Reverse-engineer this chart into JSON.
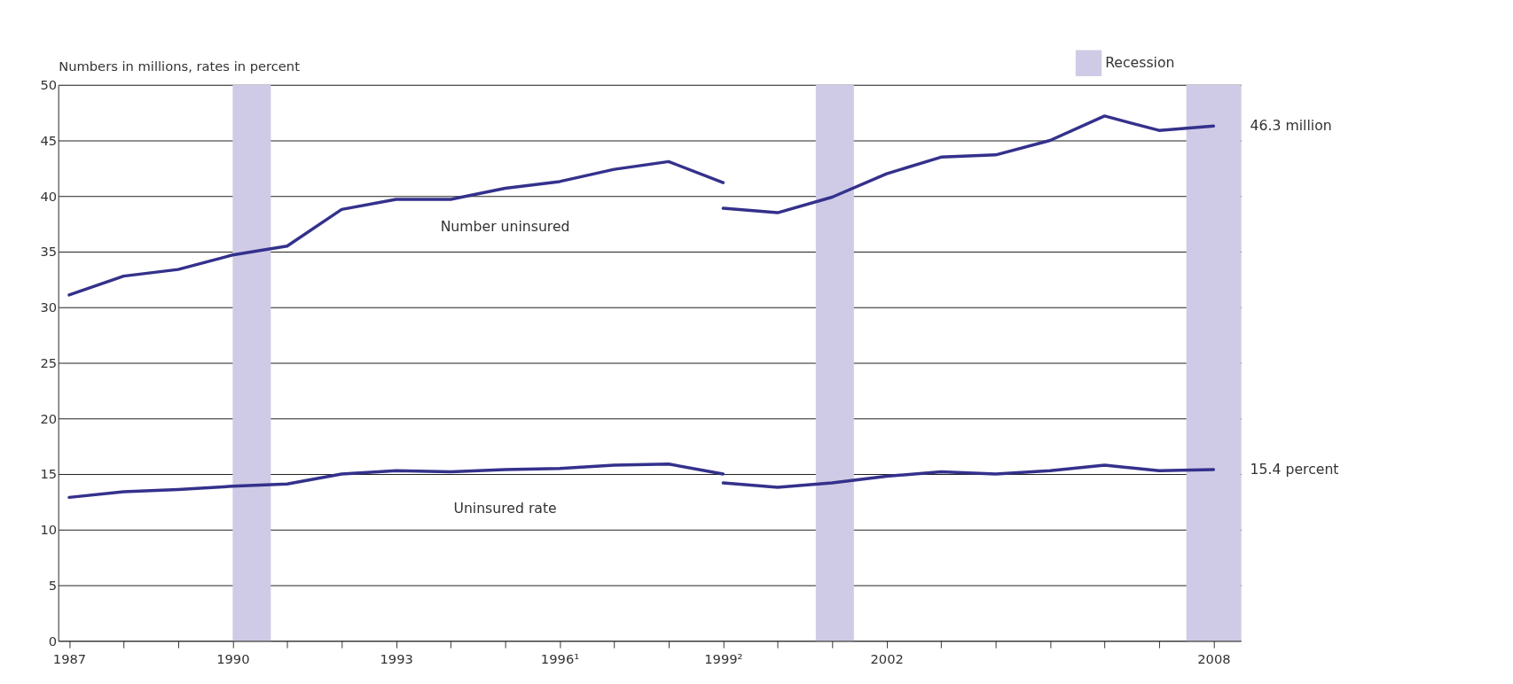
{
  "chart_data": {
    "type": "line",
    "ylabel": "Numbers in millions, rates in percent",
    "xlim": [
      1986.8,
      2008.5
    ],
    "ylim": [
      0,
      50
    ],
    "yticks": [
      0,
      5,
      10,
      15,
      20,
      25,
      30,
      35,
      40,
      45,
      50
    ],
    "xticks": [
      1987,
      {
        "value": 1988,
        "label": null
      },
      {
        "value": 1989,
        "label": null
      },
      1990,
      {
        "value": 1991,
        "label": null
      },
      {
        "value": 1992,
        "label": null
      },
      1993,
      {
        "value": 1994,
        "label": null
      },
      {
        "value": 1995,
        "label": null
      },
      {
        "value": 1996,
        "label": "1996¹"
      },
      {
        "value": 1997,
        "label": null
      },
      {
        "value": 1998,
        "label": null
      },
      {
        "value": 1999,
        "label": "1999²"
      },
      {
        "value": 2000,
        "label": null
      },
      {
        "value": 2001,
        "label": null
      },
      2002,
      {
        "value": 2003,
        "label": null
      },
      {
        "value": 2004,
        "label": null
      },
      {
        "value": 2005,
        "label": null
      },
      {
        "value": 2006,
        "label": null
      },
      {
        "value": 2007,
        "label": null
      },
      2008
    ],
    "series": [
      {
        "name": "Number uninsured",
        "color": "#34318c",
        "x": [
          1987,
          1988,
          1989,
          1990,
          1991,
          1992,
          1993,
          1994,
          1995,
          1996,
          1997,
          1998,
          1999
        ],
        "values": [
          31.1,
          32.8,
          33.4,
          34.7,
          35.5,
          38.8,
          39.7,
          39.7,
          40.7,
          41.3,
          42.4,
          43.1,
          41.2
        ]
      },
      {
        "color": "#34318c",
        "x": [
          1999,
          2000,
          2001,
          2002,
          2003,
          2004,
          2005,
          2006,
          2007,
          2008
        ],
        "values": [
          38.9,
          38.5,
          39.9,
          42.0,
          43.5,
          43.7,
          45.0,
          47.2,
          45.9,
          46.3
        ]
      },
      {
        "name": "Uninsured rate",
        "color": "#34318c",
        "x": [
          1987,
          1988,
          1989,
          1990,
          1991,
          1992,
          1993,
          1994,
          1995,
          1996,
          1997,
          1998,
          1999
        ],
        "values": [
          12.9,
          13.4,
          13.6,
          13.9,
          14.1,
          15.0,
          15.3,
          15.2,
          15.4,
          15.5,
          15.8,
          15.9,
          15.0
        ]
      },
      {
        "color": "#34318c",
        "x": [
          1999,
          2000,
          2001,
          2002,
          2003,
          2004,
          2005,
          2006,
          2007,
          2008
        ],
        "values": [
          14.2,
          13.8,
          14.2,
          14.8,
          15.2,
          15.0,
          15.3,
          15.8,
          15.3,
          15.4
        ]
      }
    ],
    "bands": [
      {
        "axis": "x",
        "from": 1990.0,
        "to": 1990.7,
        "label": "Recession",
        "color": "#cfcbe6"
      },
      {
        "axis": "x",
        "from": 2000.7,
        "to": 2001.4,
        "color": "#cfcbe6"
      },
      {
        "axis": "x",
        "from": 2007.5,
        "to": 2008.5,
        "color": "#cfcbe6"
      }
    ],
    "annotations": [
      {
        "text": "46.3 million",
        "x": 2008,
        "y": 46.3
      },
      {
        "text": "15.4 percent",
        "x": 2008,
        "y": 15.4
      }
    ],
    "grid": "y",
    "legend": "top right",
    "line_style": "solid",
    "marker": "none"
  }
}
